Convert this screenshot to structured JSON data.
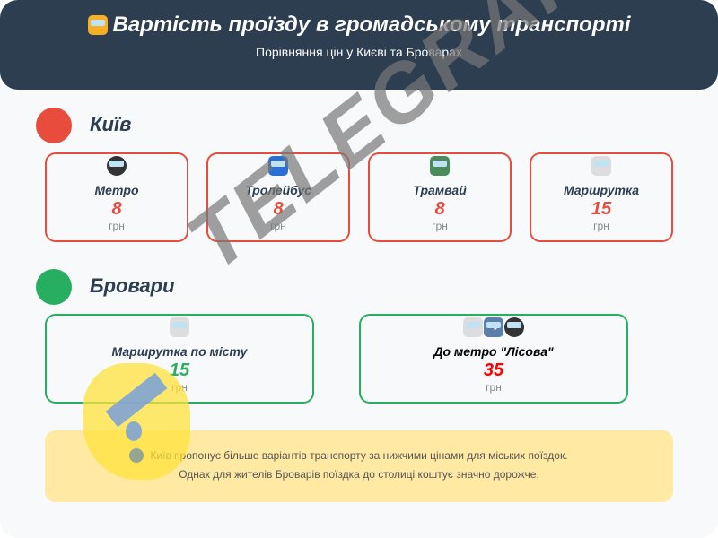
{
  "header": {
    "icon": "bus-icon",
    "title": "Вартість проїзду в громадському транспорті",
    "subtitle": "Порівняння цін у Києві та Броварах"
  },
  "kyiv": {
    "title": "Київ",
    "color": "#e74c3c",
    "cards": [
      {
        "icon": "metro-icon",
        "name": "Метро",
        "price": "8",
        "unit": "грн"
      },
      {
        "icon": "trolleybus-icon",
        "name": "Тролейбус",
        "price": "8",
        "unit": "грн"
      },
      {
        "icon": "tram-icon",
        "name": "Трамвай",
        "price": "8",
        "unit": "грн"
      },
      {
        "icon": "minibus-icon",
        "name": "Маршрутка",
        "price": "15",
        "unit": "грн"
      }
    ]
  },
  "brovary": {
    "title": "Бровари",
    "color": "#27ae60",
    "cards": [
      {
        "icon": "minibus-icon",
        "name": "Маршрутка по місту",
        "price": "15",
        "unit": "грн",
        "price_color": "#27ae60"
      },
      {
        "icons": [
          "minibus-icon",
          "arrow-right-icon",
          "metro-icon"
        ],
        "name": "До метро \"Лісова\"",
        "price": "35",
        "unit": "грн",
        "price_color": "#ff0000"
      }
    ]
  },
  "note": {
    "line1": "Київ пропонує більше варіантів транспорту за нижчими цінами для міських поїздок.",
    "line2": "Однак для жителів Броварів поїздка до столиці коштує значно дорожче."
  },
  "watermark": "TELEGRAF"
}
